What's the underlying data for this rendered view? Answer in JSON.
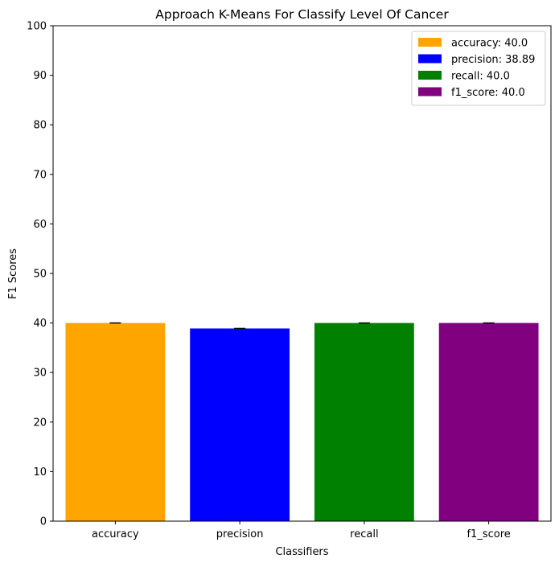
{
  "chart_data": {
    "type": "bar",
    "title": "Approach K-Means For Classify Level Of Cancer",
    "xlabel": "Classifiers",
    "ylabel": "F1 Scores",
    "categories": [
      "accuracy",
      "precision",
      "recall",
      "f1_score"
    ],
    "values": [
      40.0,
      38.89,
      40.0,
      40.0
    ],
    "colors": [
      "#ffa500",
      "#0000ff",
      "#008000",
      "#800080"
    ],
    "ylim": [
      0,
      100
    ],
    "yticks": [
      "0",
      "10",
      "20",
      "30",
      "40",
      "50",
      "60",
      "70",
      "80",
      "90",
      "100"
    ],
    "legend": {
      "position": "top-right",
      "entries": [
        "accuracy: 40.0",
        "precision: 38.89",
        "recall: 40.0",
        "f1_score: 40.0"
      ]
    },
    "error_bars": true,
    "grid": false
  }
}
